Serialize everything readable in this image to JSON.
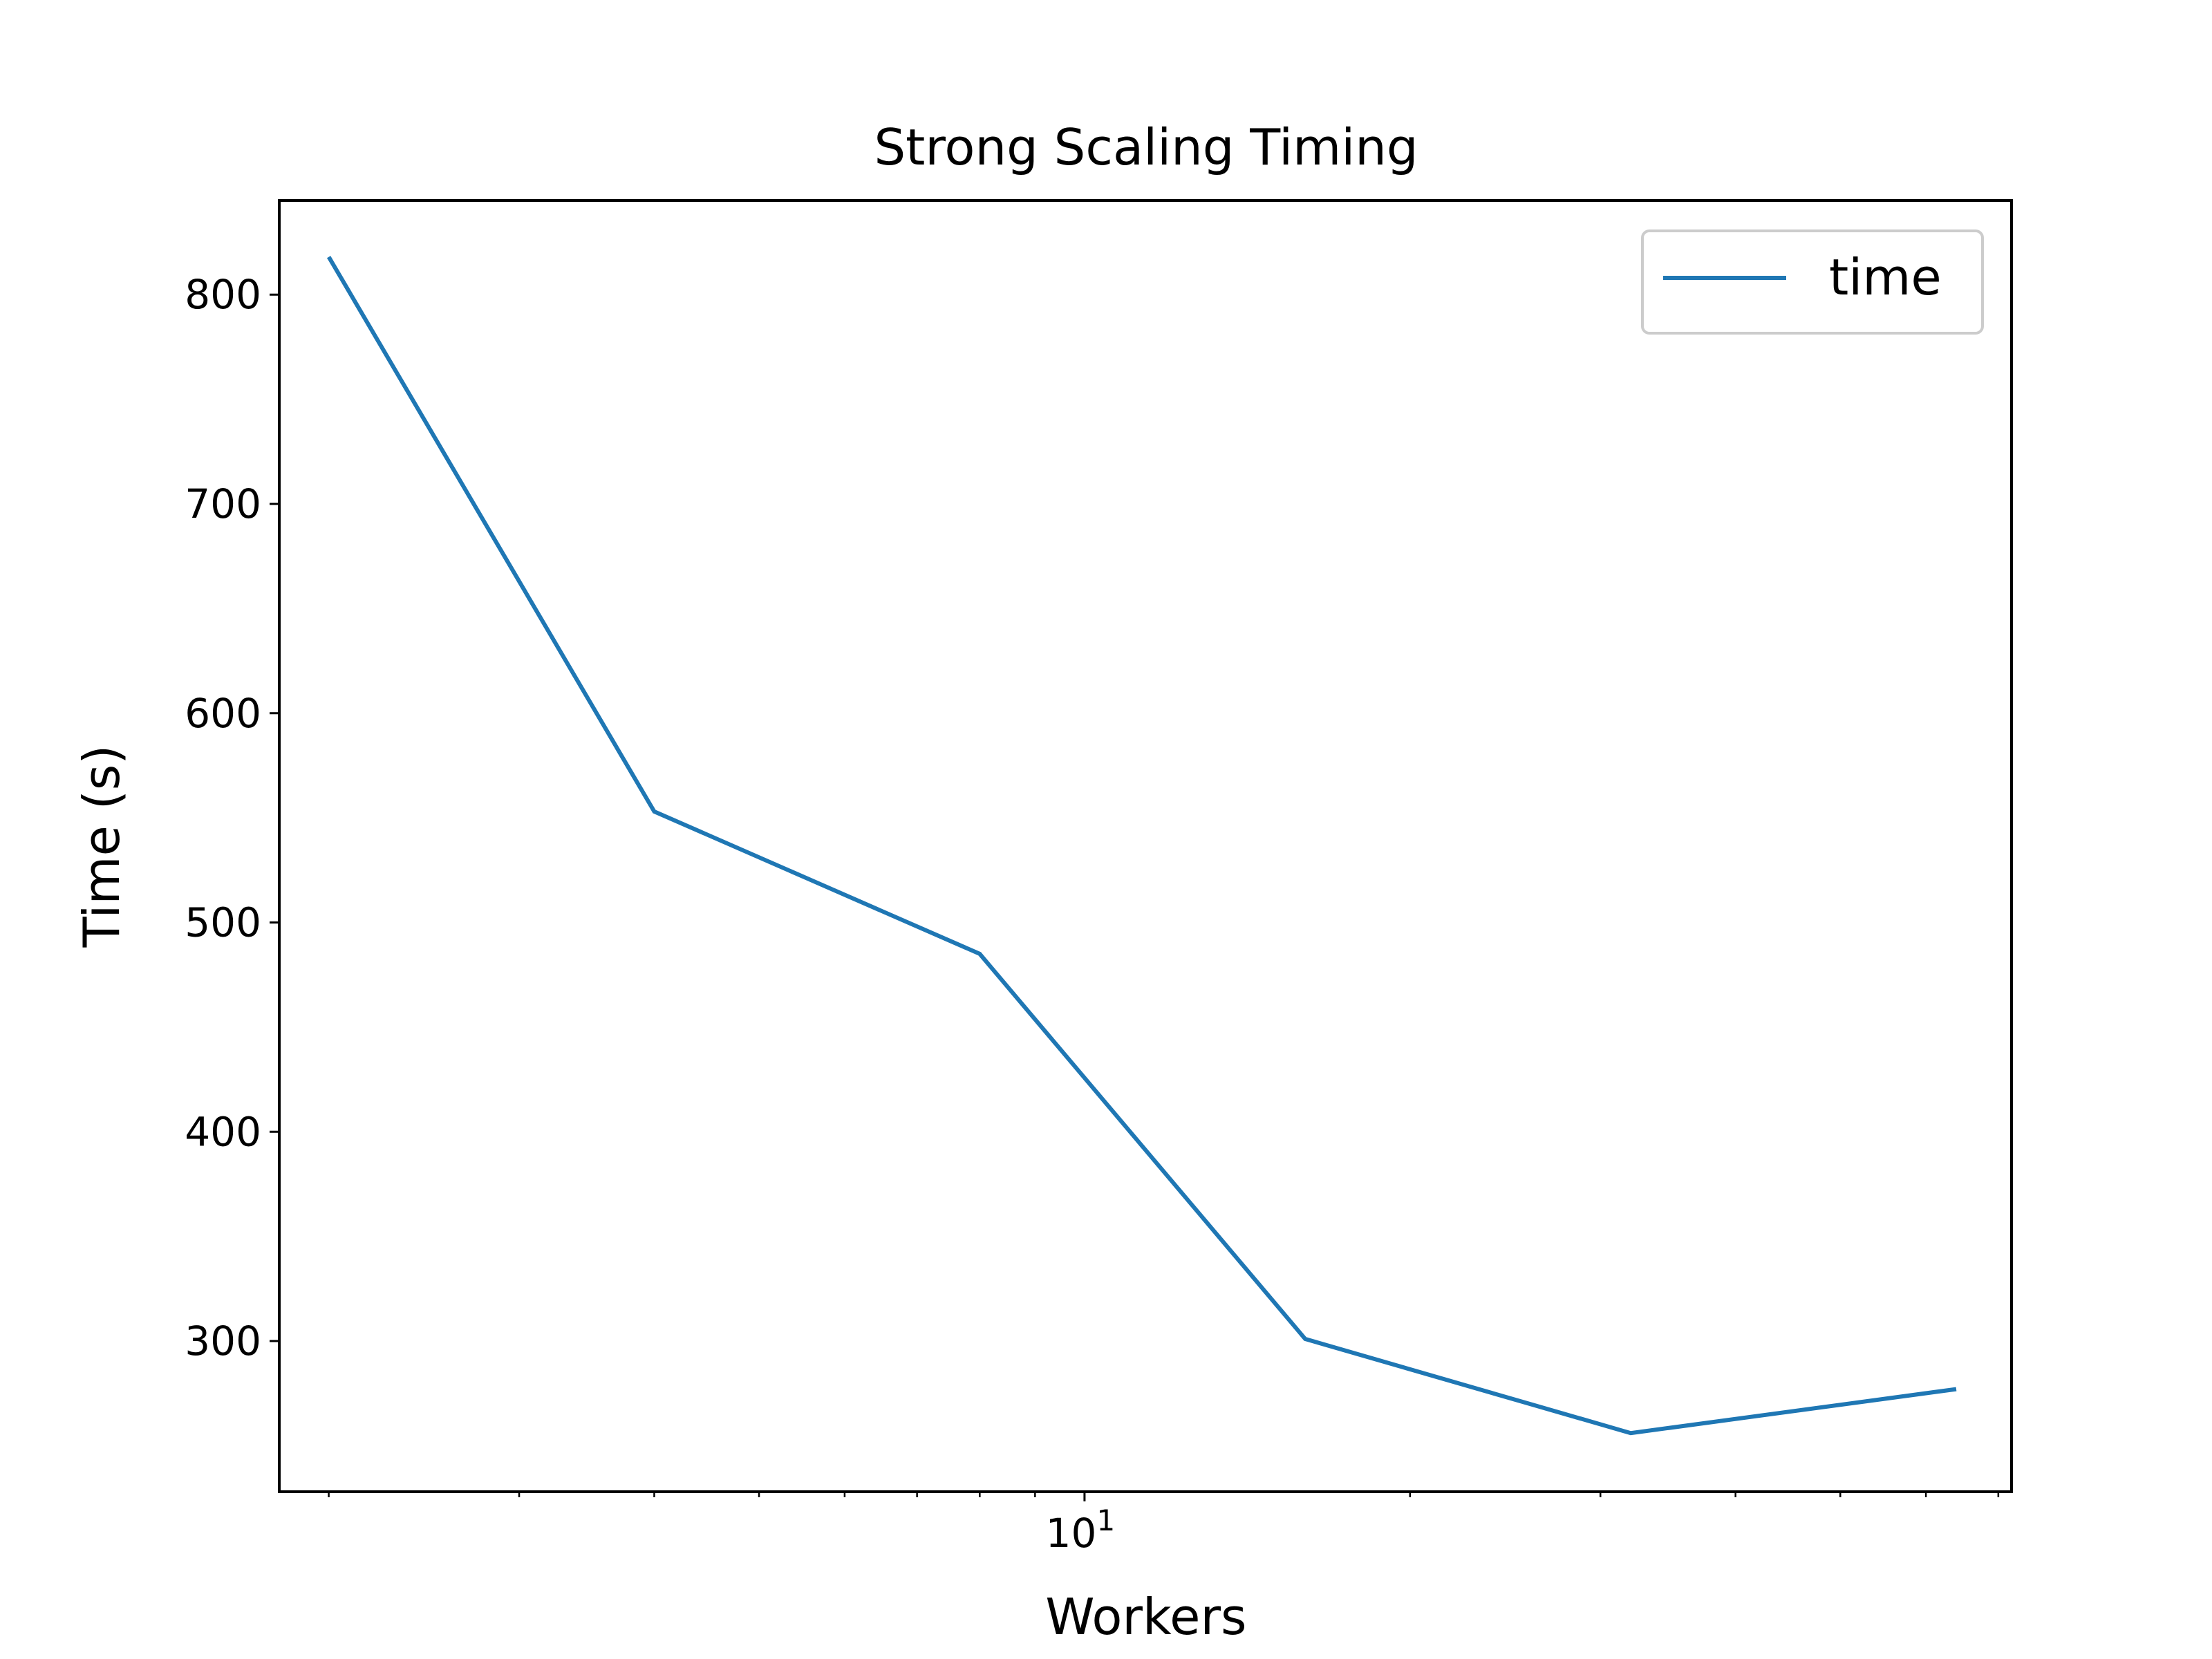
{
  "chart_data": {
    "type": "line",
    "title": "Strong Scaling Timing",
    "xlabel": "Workers",
    "ylabel": "Time (s)",
    "xscale": "log",
    "xlim": [
      1.8,
      72
    ],
    "ylim": [
      228,
      845
    ],
    "x_tick_labels": [
      {
        "base": "10",
        "exp": "1"
      }
    ],
    "y_ticks": [
      300,
      400,
      500,
      600,
      700,
      800
    ],
    "grid": false,
    "legend": {
      "placement": "top-right",
      "entries": [
        "time"
      ]
    },
    "series": [
      {
        "name": "time",
        "color": "#1f77b4",
        "x": [
          2,
          4,
          8,
          16,
          32,
          64
        ],
        "y": [
          818,
          553,
          485,
          301,
          256,
          277
        ]
      }
    ]
  }
}
